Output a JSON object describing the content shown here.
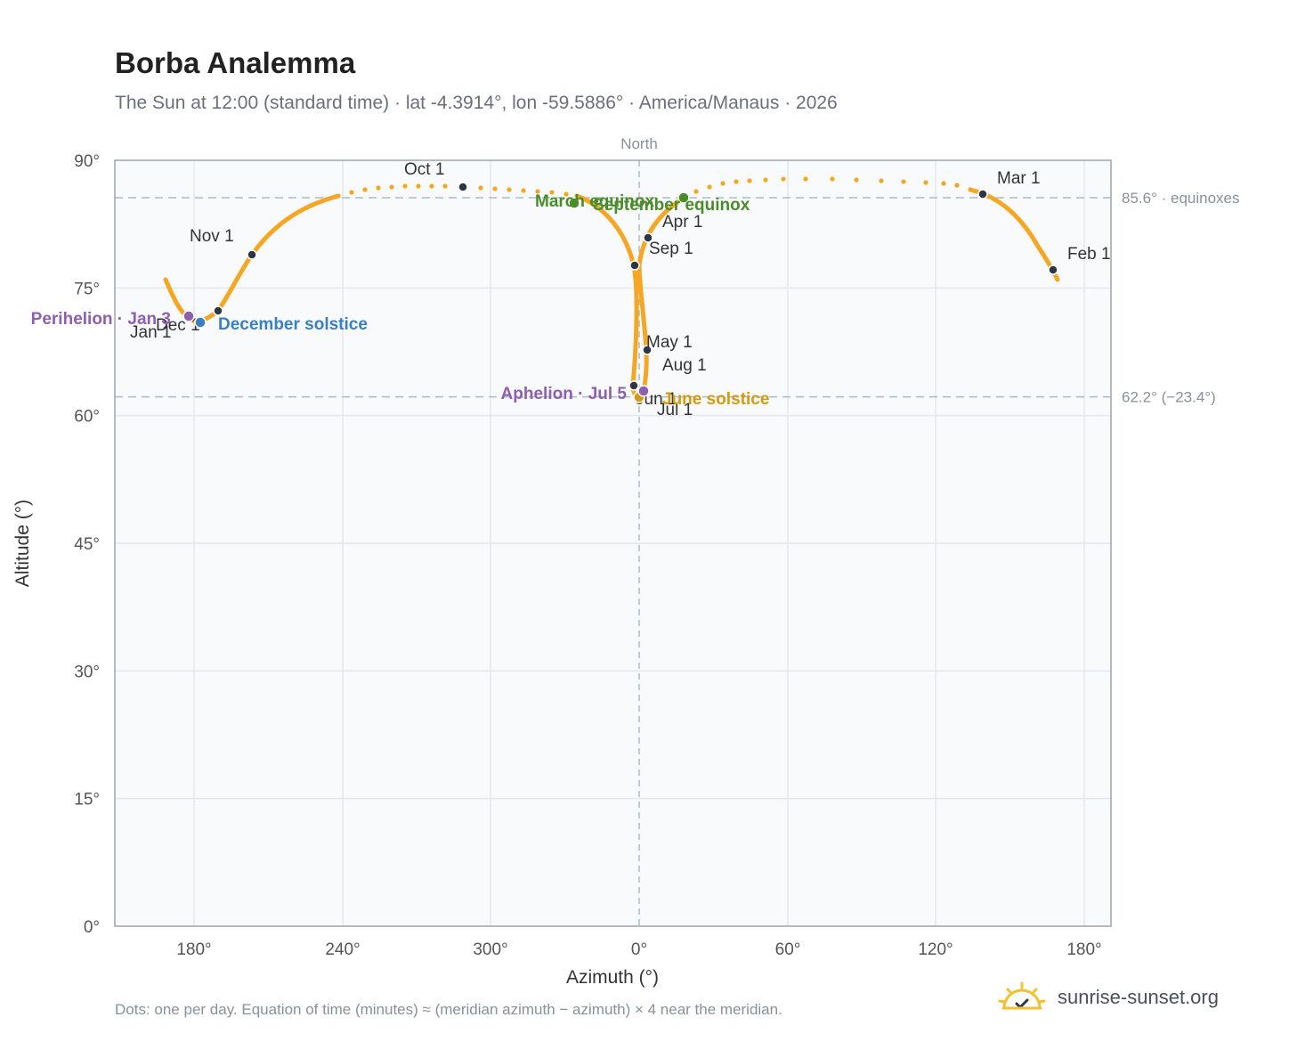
{
  "header": {
    "title": "Borba Analemma",
    "subtitle": "The Sun at 12:00 (standard time) · lat -4.3914°, lon -59.5886° · America/Manaus · 2026"
  },
  "footer": {
    "note": "Dots: one per day. Equation of time (minutes) ≈ (meridian azimuth − azimuth) × 4 near the meridian.",
    "brand": "sunrise-sunset.org"
  },
  "colors": {
    "curve": "#f5a623",
    "month_dot": "#2f3542",
    "equinox": "#4a8c2a",
    "december_solstice": "#3a7fc1",
    "june_solstice": "#d49a12",
    "apsis": "#8e5fb0",
    "reference_line": "#a9bcc7",
    "grid": "#e3e8ee",
    "plot_bg": "#f8fafc"
  },
  "chart_data": {
    "type": "scatter",
    "title": "Borba Analemma",
    "xlabel": "Azimuth (°)",
    "ylabel": "Altitude (°)",
    "north_label": "North",
    "x_ticks": [
      "180°",
      "240°",
      "300°",
      "0°",
      "60°",
      "120°",
      "180°"
    ],
    "y_ticks": [
      "0°",
      "15°",
      "30°",
      "45°",
      "60°",
      "75°",
      "90°"
    ],
    "ylim": [
      0,
      90
    ],
    "grid": true,
    "reference_lines": [
      {
        "label": "85.6° · equinoxes",
        "altitude": 85.6
      },
      {
        "label": "62.2° (−23.4°)",
        "altitude": 62.2
      }
    ],
    "month_markers": [
      {
        "label": "Jan 1",
        "azimuth": 178,
        "altitude": 71.0
      },
      {
        "label": "Feb 1",
        "azimuth": 167,
        "altitude": 77.0
      },
      {
        "label": "Mar 1",
        "azimuth": 138,
        "altitude": 86.0
      },
      {
        "label": "Apr 1",
        "azimuth": 3,
        "altitude": 81.0
      },
      {
        "label": "May 1",
        "azimuth": 3,
        "altitude": 67.5
      },
      {
        "label": "Jun 1",
        "azimuth": -2.5,
        "altitude": 63.4
      },
      {
        "label": "Jul 1",
        "azimuth": 0,
        "altitude": 62.4
      },
      {
        "label": "Aug 1",
        "azimuth": 2,
        "altitude": 63.0
      },
      {
        "label": "Sep 1",
        "azimuth": -2,
        "altitude": 77.5
      },
      {
        "label": "Oct 1",
        "azimuth": 312,
        "altitude": 87.0
      },
      {
        "label": "Nov 1",
        "azimuth": 203,
        "altitude": 79.0
      },
      {
        "label": "Dec 1",
        "azimuth": 189,
        "altitude": 72.5
      }
    ],
    "events": [
      {
        "label": "March equinox",
        "azimuth": 333,
        "altitude": 85.2
      },
      {
        "label": "September equinox",
        "azimuth": 18,
        "altitude": 85.6
      },
      {
        "label": "December solstice",
        "azimuth": 182,
        "altitude": 71.0
      },
      {
        "label": "June solstice",
        "azimuth": 0,
        "altitude": 62.2
      },
      {
        "label": "Perihelion · Jan 3",
        "azimuth": 178,
        "altitude": 71.7
      },
      {
        "label": "Aphelion · Jul 5",
        "azimuth": 2,
        "altitude": 63.0
      }
    ]
  }
}
